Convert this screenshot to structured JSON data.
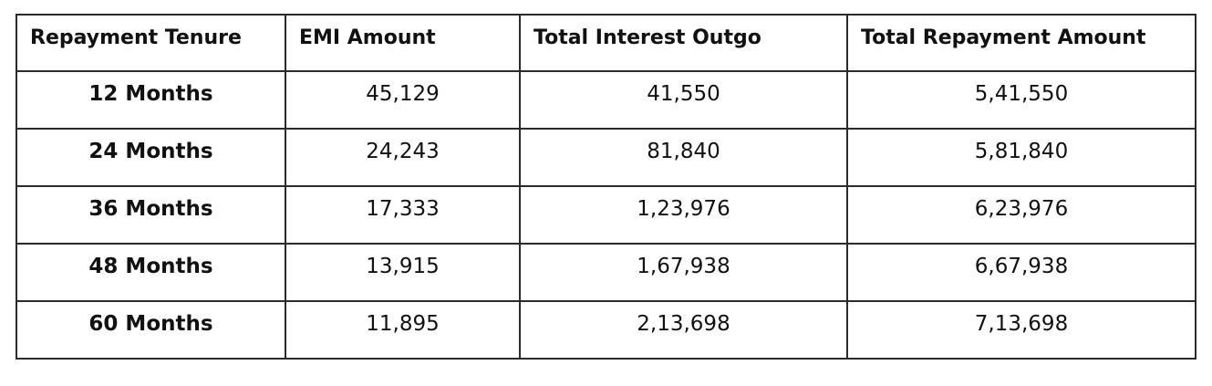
{
  "table": {
    "headers": [
      "Repayment Tenure",
      "EMI Amount",
      "Total Interest Outgo",
      "Total Repayment Amount"
    ],
    "rows": [
      [
        "12 Months",
        "45,129",
        "41,550",
        "5,41,550"
      ],
      [
        "24 Months",
        "24,243",
        "81,840",
        "5,81,840"
      ],
      [
        "36 Months",
        "17,333",
        "1,23,976",
        "6,23,976"
      ],
      [
        "48 Months",
        "13,915",
        "1,67,938",
        "6,67,938"
      ],
      [
        "60 Months",
        "11,895",
        "2,13,698",
        "7,13,698"
      ]
    ]
  },
  "colors": {
    "border": "#2b2b2b",
    "text": "#111111",
    "background": "#ffffff"
  }
}
